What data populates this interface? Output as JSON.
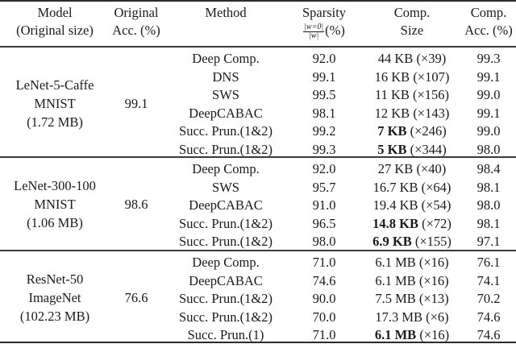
{
  "table": {
    "headers": {
      "model": [
        "Model",
        "(Original size)"
      ],
      "original_acc": [
        "Original",
        "Acc. (%)"
      ],
      "method": [
        "Method"
      ],
      "sparsity": [
        "Sparsity",
        "(%)"
      ],
      "sparsity_frac_num": "|w=0|",
      "sparsity_frac_den": "|w|",
      "comp_size": [
        "Comp.",
        "Size"
      ],
      "comp_acc": [
        "Comp.",
        "Acc. (%)"
      ]
    },
    "groups": [
      {
        "model": [
          "LeNet-5-Caffe",
          "MNIST",
          "(1.72 MB)"
        ],
        "original_acc": "99.1",
        "rows": [
          {
            "method": "Deep Comp.",
            "sparsity": "92.0",
            "size": "44 KB",
            "ratio": "(×39)",
            "bold": false,
            "acc": "99.3"
          },
          {
            "method": "DNS",
            "sparsity": "99.1",
            "size": "16 KB",
            "ratio": "(×107)",
            "bold": false,
            "acc": "99.1"
          },
          {
            "method": "SWS",
            "sparsity": "99.5",
            "size": "11 KB",
            "ratio": "(×156)",
            "bold": false,
            "acc": "99.0"
          },
          {
            "method": "DeepCABAC",
            "sparsity": "98.1",
            "size": "12 KB",
            "ratio": "(×143)",
            "bold": false,
            "acc": "99.1"
          },
          {
            "method": "Succ. Prun.(1&2)",
            "sparsity": "99.2",
            "size": "7 KB",
            "ratio": "(×246)",
            "bold": true,
            "acc": "99.0"
          },
          {
            "method": "Succ. Prun.(1&2)",
            "sparsity": "99.3",
            "size": "5 KB",
            "ratio": "(×344)",
            "bold": true,
            "acc": "98.0"
          }
        ]
      },
      {
        "model": [
          "LeNet-300-100",
          "MNIST",
          "(1.06 MB)"
        ],
        "original_acc": "98.6",
        "rows": [
          {
            "method": "Deep Comp.",
            "sparsity": "92.0",
            "size": "27 KB",
            "ratio": "(×40)",
            "bold": false,
            "acc": "98.4"
          },
          {
            "method": "SWS",
            "sparsity": "95.7",
            "size": "16.7 KB",
            "ratio": "(×64)",
            "bold": false,
            "acc": "98.1"
          },
          {
            "method": "DeepCABAC",
            "sparsity": "91.0",
            "size": "19.4 KB",
            "ratio": "(×54)",
            "bold": false,
            "acc": "98.0"
          },
          {
            "method": "Succ. Prun.(1&2)",
            "sparsity": "96.5",
            "size": "14.8 KB",
            "ratio": "(×72)",
            "bold": true,
            "acc": "98.1"
          },
          {
            "method": "Succ. Prun.(1&2)",
            "sparsity": "98.0",
            "size": "6.9 KB",
            "ratio": "(×155)",
            "bold": true,
            "acc": "97.1"
          }
        ]
      },
      {
        "model": [
          "ResNet-50",
          "ImageNet",
          "(102.23 MB)"
        ],
        "original_acc": "76.6",
        "rows": [
          {
            "method": "Deep Comp.",
            "sparsity": "71.0",
            "size": "6.1 MB",
            "ratio": "(×16)",
            "bold": false,
            "acc": "76.1"
          },
          {
            "method": "DeepCABAC",
            "sparsity": "74.6",
            "size": "6.1 MB",
            "ratio": "(×16)",
            "bold": false,
            "acc": "74.1"
          },
          {
            "method": "Succ. Prun.(1&2)",
            "sparsity": "90.0",
            "size": "7.5 MB",
            "ratio": "(×13)",
            "bold": false,
            "acc": "70.2"
          },
          {
            "method": "Succ. Prun.(1&2)",
            "sparsity": "70.0",
            "size": "17.3 MB",
            "ratio": "(×6)",
            "bold": false,
            "acc": "74.6"
          },
          {
            "method": "Succ. Prun.(1)",
            "sparsity": "71.0",
            "size": "6.1 MB",
            "ratio": "(×16)",
            "bold": true,
            "acc": "74.6"
          }
        ]
      }
    ]
  }
}
